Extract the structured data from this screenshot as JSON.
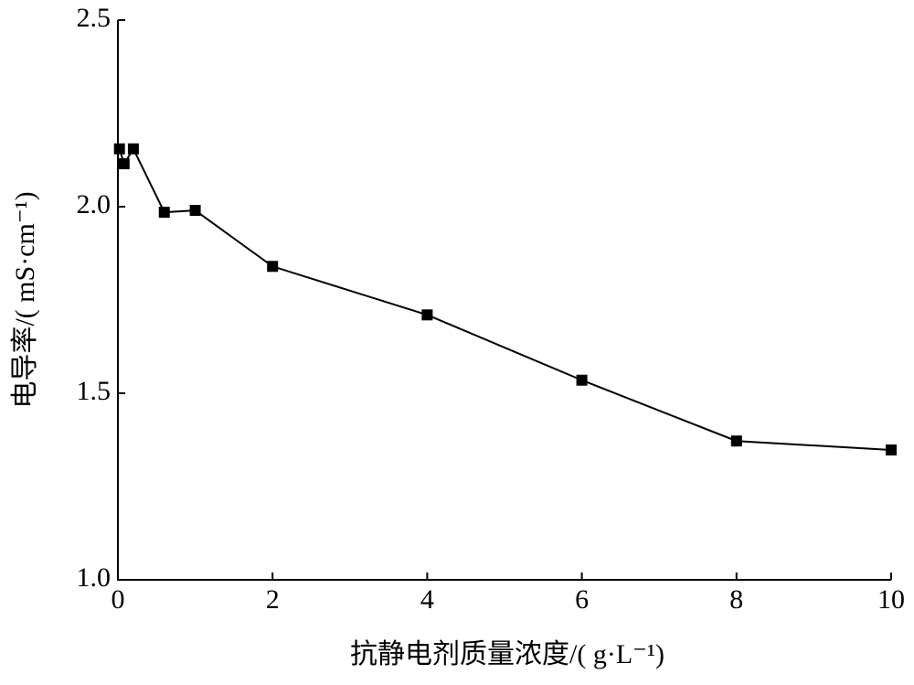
{
  "chart_data": {
    "type": "line",
    "x_label": "抗静电剂质量浓度/( g·L⁻¹)",
    "y_label": "电导率/( mS·cm⁻¹)",
    "x": [
      0.02,
      0.08,
      0.2,
      0.6,
      1,
      2,
      4,
      6,
      8,
      10
    ],
    "series": [
      {
        "color": "#000000",
        "values": [
          2.155,
          2.115,
          2.155,
          1.985,
          1.99,
          1.84,
          1.71,
          1.535,
          1.372,
          1.348
        ]
      }
    ],
    "xlim": [
      0,
      10
    ],
    "xticks": [
      0,
      2,
      4,
      6,
      8,
      10
    ],
    "ylim": [
      1.0,
      2.5
    ],
    "yticks": [
      {
        "value": 1.0,
        "label": "1.0"
      },
      1.5,
      {
        "value": 2.0,
        "label": "2.0"
      },
      2.5
    ],
    "grid": false
  }
}
